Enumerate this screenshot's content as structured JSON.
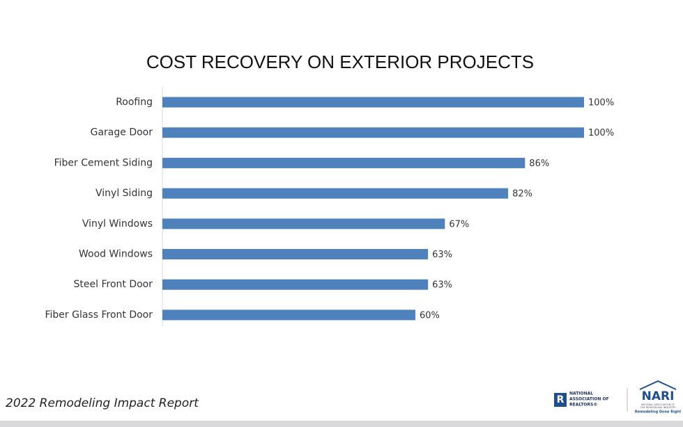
{
  "chart_data": {
    "type": "bar",
    "orientation": "horizontal",
    "title": "COST RECOVERY ON EXTERIOR PROJECTS",
    "categories": [
      "Roofing",
      "Garage Door",
      "Fiber Cement Siding",
      "Vinyl Siding",
      "Vinyl Windows",
      "Wood Windows",
      "Steel Front Door",
      "Fiber Glass Front Door"
    ],
    "values": [
      100,
      100,
      86,
      82,
      67,
      63,
      63,
      60
    ],
    "value_labels": [
      "100%",
      "100%",
      "86%",
      "82%",
      "67%",
      "63%",
      "63%",
      "60%"
    ],
    "color": "#4f81bd",
    "xlim": [
      0,
      100
    ]
  },
  "footer": "2022 Remodeling Impact Report",
  "logos": {
    "realtors": [
      "NATIONAL",
      "ASSOCIATION OF",
      "REALTORS®"
    ],
    "nari": "NARI",
    "nari_sub": [
      "NATIONAL ASSOCIATION OF",
      "THE REMODELING INDUSTRY"
    ],
    "nari_tagline": "Remodeling Done Right"
  }
}
